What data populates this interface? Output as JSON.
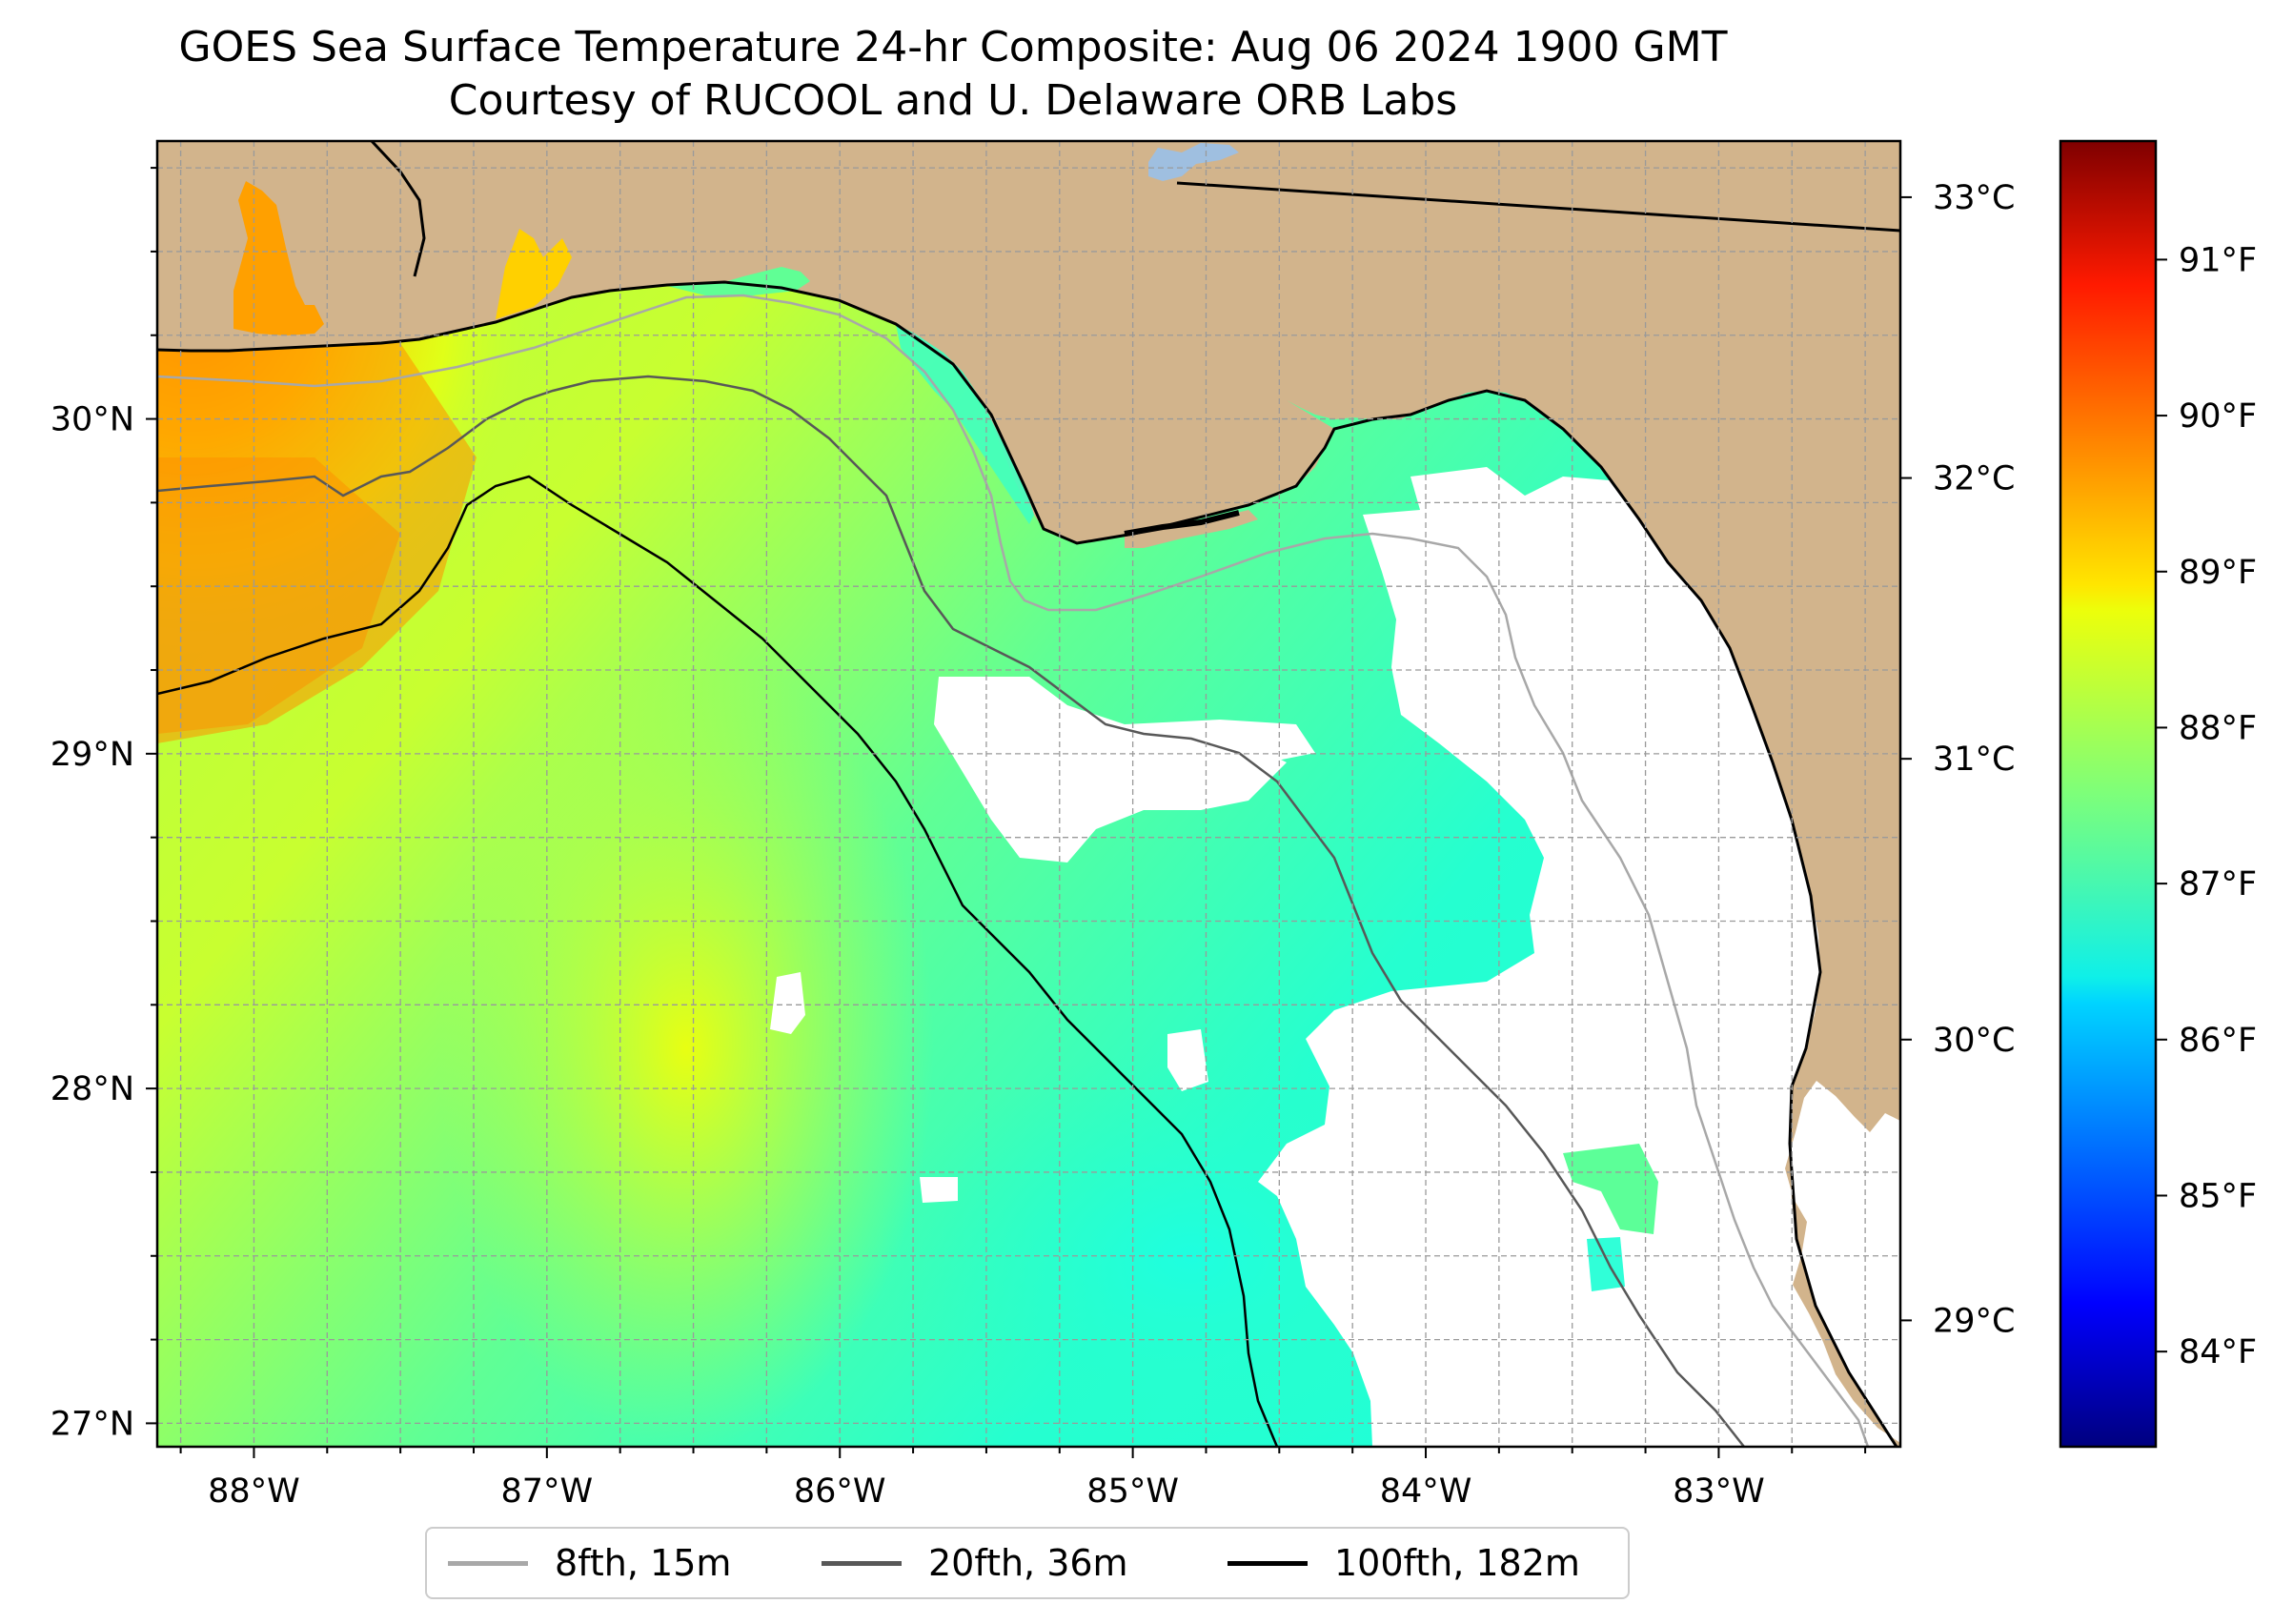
{
  "title": {
    "line1": "GOES Sea Surface Temperature 24-hr Composite: Aug 06 2024 1900 GMT",
    "line2": "Courtesy of RUCOOL and U. Delaware ORB Labs"
  },
  "map": {
    "lon_range": [
      -88.33,
      -82.38
    ],
    "lat_range": [
      26.93,
      30.83
    ],
    "lon_ticks": [
      {
        "value": -88,
        "label": "88°W"
      },
      {
        "value": -87,
        "label": "87°W"
      },
      {
        "value": -86,
        "label": "86°W"
      },
      {
        "value": -85,
        "label": "85°W"
      },
      {
        "value": -84,
        "label": "84°W"
      },
      {
        "value": -83,
        "label": "83°W"
      }
    ],
    "lat_ticks": [
      {
        "value": 27,
        "label": "27°N"
      },
      {
        "value": 28,
        "label": "28°N"
      },
      {
        "value": 29,
        "label": "29°N"
      },
      {
        "value": 30,
        "label": "30°N"
      }
    ],
    "colors": {
      "land": "#d2b48c",
      "no_data": "#ffffff",
      "lake": "#9fbfe0",
      "isobath_8fth": "#a8a8a8",
      "isobath_20fth": "#585858",
      "isobath_100fth": "#000000"
    }
  },
  "colorbar": {
    "colormap": "jet",
    "celsius_ticks": [
      {
        "value": 29,
        "label": "29°C"
      },
      {
        "value": 30,
        "label": "30°C"
      },
      {
        "value": 31,
        "label": "31°C"
      },
      {
        "value": 32,
        "label": "32°C"
      },
      {
        "value": 33,
        "label": "33°C"
      }
    ],
    "fahrenheit_ticks": [
      {
        "value": 84,
        "label": "84°F"
      },
      {
        "value": 85,
        "label": "85°F"
      },
      {
        "value": 86,
        "label": "86°F"
      },
      {
        "value": 87,
        "label": "87°F"
      },
      {
        "value": 88,
        "label": "88°F"
      },
      {
        "value": 89,
        "label": "89°F"
      },
      {
        "value": 90,
        "label": "90°F"
      },
      {
        "value": 91,
        "label": "91°F"
      }
    ],
    "range_celsius": [
      28.55,
      33.2
    ]
  },
  "legend": {
    "items": [
      {
        "label": "8fth, 15m",
        "color": "#a8a8a8"
      },
      {
        "label": "20fth, 36m",
        "color": "#585858"
      },
      {
        "label": "100fth, 182m",
        "color": "#000000"
      }
    ]
  }
}
